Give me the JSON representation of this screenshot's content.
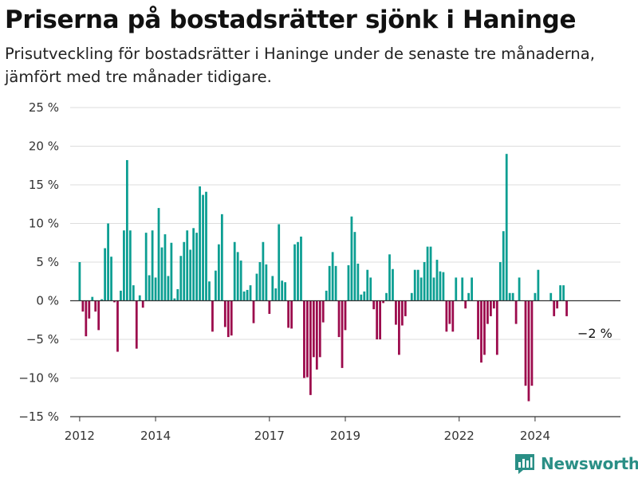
{
  "title": "Priserna på bostadsrätter sjönk i Haninge",
  "subtitle": "Prisutveckling för bostadsrätter i Haninge under de senaste tre månaderna, jämfört med tre månader tidigare.",
  "brand": {
    "name": "Newsworthy",
    "icon": "newsworthy-logo-icon",
    "color": "#2a8f86"
  },
  "chart_data": {
    "type": "bar",
    "title": "Priserna på bostadsrätter sjönk i Haninge",
    "subtitle": "Prisutveckling för bostadsrätter i Haninge under de senaste tre månaderna, jämfört med tre månader tidigare.",
    "xlabel": "",
    "ylabel": "",
    "ylim": [
      -15,
      25
    ],
    "yticks": [
      25,
      20,
      15,
      10,
      5,
      0,
      -5,
      -10,
      -15
    ],
    "ytick_labels": [
      "25 %",
      "20 %",
      "15 %",
      "10 %",
      "5 %",
      "0 %",
      "−5 %",
      "−10 %",
      "−15 %"
    ],
    "xlim": [
      2011.75,
      2026.25
    ],
    "xticks": [
      2012,
      2014,
      2017,
      2019,
      2022,
      2024
    ],
    "xtick_labels": [
      "2012",
      "2014",
      "2017",
      "2019",
      "2022",
      "2024"
    ],
    "grid": true,
    "colors": {
      "positive": "#0b9e92",
      "negative": "#9c0a4c"
    },
    "annotation": {
      "text": "−2 %",
      "x": 2025.25,
      "y": -2
    },
    "x_start": 2012.0,
    "x_step": 0.08333,
    "values": [
      5,
      -1.4,
      -4.6,
      -2.3,
      0.5,
      -1.4,
      -3.8,
      0.2,
      6.8,
      10,
      5.7,
      -0.2,
      -6.6,
      1.3,
      9.1,
      18.2,
      9.1,
      2,
      -6.2,
      0.7,
      -0.9,
      8.8,
      3.3,
      9.1,
      3,
      12,
      6.9,
      8.6,
      3.2,
      7.5,
      0.3,
      1.5,
      5.8,
      7.6,
      9.1,
      6.6,
      9.4,
      8.8,
      14.8,
      13.7,
      14.1,
      2.5,
      -4,
      3.9,
      7.3,
      11.2,
      -3.4,
      -4.7,
      -4.5,
      7.6,
      6.3,
      5.2,
      1.2,
      1.4,
      2,
      -2.9,
      3.5,
      5,
      7.6,
      4.7,
      -1.7,
      3.2,
      1.6,
      9.9,
      2.6,
      2.4,
      -3.5,
      -3.6,
      7.3,
      7.6,
      8.3,
      -10,
      -9.9,
      -12.2,
      -7.3,
      -8.9,
      -7.3,
      -2.8,
      1.3,
      4.5,
      6.3,
      4.5,
      -4.7,
      -8.7,
      -3.8,
      4.6,
      10.9,
      8.9,
      4.8,
      0.8,
      1.2,
      4,
      3,
      -1.1,
      -5,
      -5,
      -0.3,
      1,
      6,
      4.1,
      -3.1,
      -7,
      -3.2,
      -2,
      0,
      1,
      4,
      4,
      3,
      5,
      7,
      7,
      3,
      5.3,
      3.8,
      3.7,
      -4,
      -3,
      -4,
      3,
      0,
      3,
      -1,
      1,
      3,
      0,
      -5,
      -8,
      -7,
      -3,
      -2,
      -1,
      -7,
      5,
      9,
      19,
      1,
      1,
      -3,
      3,
      0,
      -11,
      -13,
      -11,
      1,
      4,
      0,
      0,
      0,
      1,
      -2,
      -1,
      2,
      2,
      -2
    ]
  }
}
